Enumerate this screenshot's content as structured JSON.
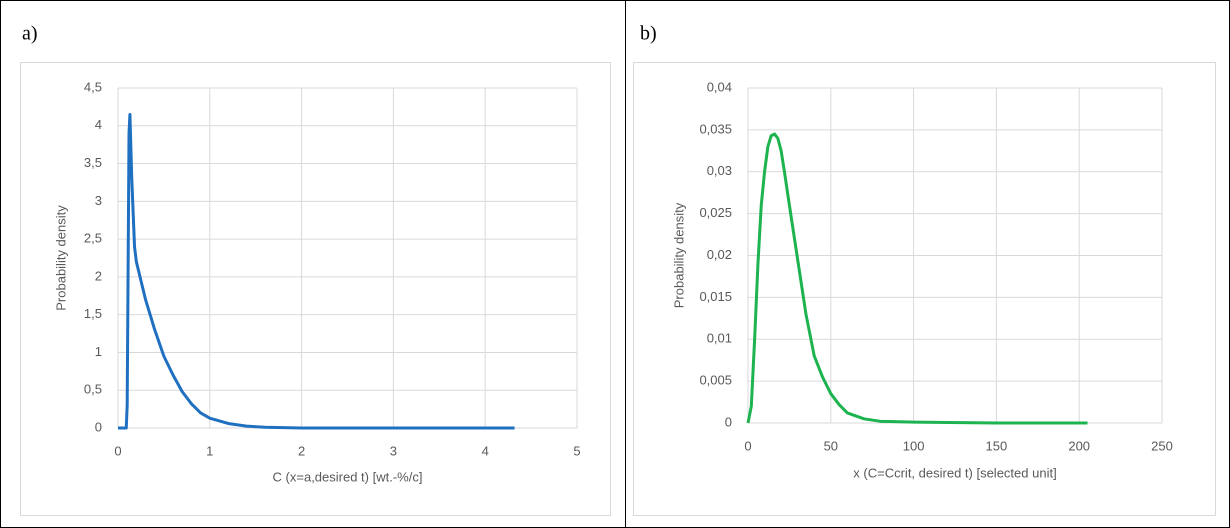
{
  "chart_data": [
    {
      "type": "line",
      "panel_label": "a)",
      "x_label": "C (x=a,desired t) [wt.-%/c]",
      "y_label": "Probability density",
      "xlim": [
        0,
        5
      ],
      "xticks": [
        0,
        1,
        2,
        3,
        4,
        5
      ],
      "ylim": [
        0,
        4.5
      ],
      "yticks": [
        0,
        {
          "value": 0.5,
          "label": "0,5"
        },
        1,
        {
          "value": 1.5,
          "label": "1,5"
        },
        2,
        {
          "value": 2.5,
          "label": "2,5"
        },
        3,
        {
          "value": 3.5,
          "label": "3,5"
        },
        4,
        {
          "value": 4.5,
          "label": "4,5"
        }
      ],
      "grid": true,
      "series": [
        {
          "color": "#1f70c1",
          "x": [
            0,
            0.09,
            0.1,
            0.12,
            0.13,
            0.15,
            0.18,
            0.2,
            0.25,
            0.3,
            0.4,
            0.5,
            0.6,
            0.7,
            0.8,
            0.9,
            1,
            1.2,
            1.4,
            1.6,
            2,
            3,
            4.32
          ],
          "values": [
            0,
            0,
            0.3,
            3.9,
            4.15,
            3.3,
            2.4,
            2.2,
            1.95,
            1.7,
            1.3,
            0.95,
            0.7,
            0.48,
            0.32,
            0.2,
            0.13,
            0.06,
            0.025,
            0.01,
            0,
            0,
            0
          ]
        }
      ]
    },
    {
      "type": "line",
      "panel_label": "b)",
      "x_label": "x (C=Ccrit, desired t) [selected unit]",
      "y_label": "Probability density",
      "xlim": [
        0,
        250
      ],
      "xticks": [
        0,
        50,
        100,
        150,
        200,
        250
      ],
      "ylim": [
        0,
        0.04
      ],
      "yticks": [
        0,
        {
          "value": 0.005,
          "label": "0,005"
        },
        {
          "value": 0.01,
          "label": "0,01"
        },
        {
          "value": 0.015,
          "label": "0,015"
        },
        {
          "value": 0.02,
          "label": "0,02"
        },
        {
          "value": 0.025,
          "label": "0,025"
        },
        {
          "value": 0.03,
          "label": "0,03"
        },
        {
          "value": 0.035,
          "label": "0,035"
        },
        {
          "value": 0.04,
          "label": "0,04"
        }
      ],
      "grid": true,
      "series": [
        {
          "color": "#1db34f",
          "x": [
            0,
            2,
            4,
            6,
            8,
            10,
            12,
            14,
            16,
            18,
            20,
            22,
            25,
            30,
            35,
            40,
            45,
            50,
            55,
            60,
            70,
            80,
            100,
            150,
            205
          ],
          "values": [
            0,
            0.002,
            0.01,
            0.019,
            0.026,
            0.03,
            0.033,
            0.0343,
            0.0345,
            0.034,
            0.0325,
            0.03,
            0.026,
            0.0195,
            0.013,
            0.008,
            0.0055,
            0.0035,
            0.0022,
            0.0012,
            0.0005,
            0.0002,
            0.0001,
            0,
            0
          ]
        }
      ]
    }
  ]
}
